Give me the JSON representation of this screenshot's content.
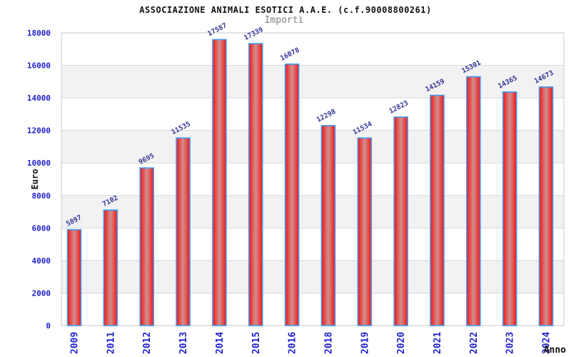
{
  "header": {
    "title": "ASSOCIAZIONE ANIMALI ESOTICI A.A.E. (c.f.90008800261)",
    "subtitle": "Importi"
  },
  "chart_data": {
    "type": "bar",
    "title": "ASSOCIAZIONE ANIMALI ESOTICI A.A.E. (c.f.90008800261)",
    "subtitle": "Importi",
    "xlabel": "Anno",
    "ylabel": "Euro",
    "categories": [
      "2009",
      "2011",
      "2012",
      "2013",
      "2014",
      "2015",
      "2016",
      "2018",
      "2019",
      "2020",
      "2021",
      "2022",
      "2023",
      "2024"
    ],
    "values": [
      5897,
      7102,
      9695,
      11535,
      17587,
      17339,
      16078,
      12298,
      11534,
      12823,
      14159,
      15301,
      14365,
      14673
    ],
    "value_labels_shown": true,
    "value_label_rotation_deg": -27,
    "xtick_rotation_deg": -90,
    "ylim": [
      0,
      18000
    ],
    "ytick_step": 2000,
    "yticks": [
      0,
      2000,
      4000,
      6000,
      8000,
      10000,
      12000,
      14000,
      16000,
      18000
    ],
    "grid": "horizontal gridlines every 2000 with alternating light-gray bands",
    "legend": "none",
    "colors": {
      "bar_edge": "#459af0",
      "bar_fill_outer": "#e8101e",
      "bar_fill_mid": "#ee3632",
      "bar_fill_inner": "#cd9191",
      "axis_tick_text": "#2222cc",
      "value_label_text": "#333399",
      "band_fill": "#f2f2f2",
      "gridline": "#d8d8d8",
      "plot_border": "#c9c9c9",
      "title_text": "#111111",
      "subtitle_text": "#7f7f7f",
      "axis_label_text": "#111111"
    }
  }
}
